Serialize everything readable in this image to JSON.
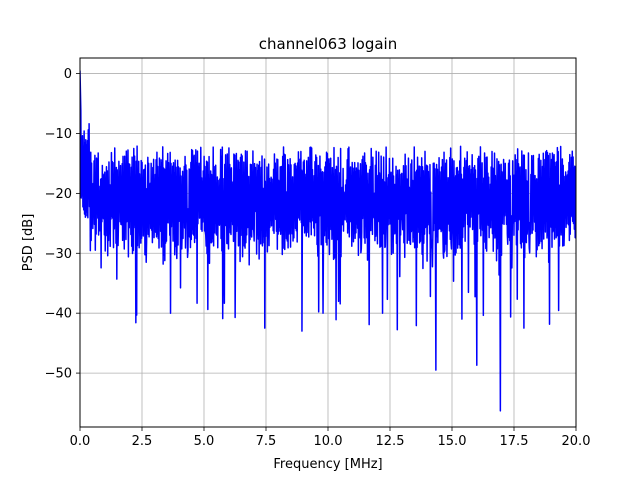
{
  "chart_data": {
    "type": "line",
    "title": "channel063 logain",
    "xlabel": "Frequency [MHz]",
    "ylabel": "PSD [dB]",
    "xlim": [
      0,
      20
    ],
    "ylim": [
      -59,
      2.6
    ],
    "grid": true,
    "series_color": "#0000ff",
    "xticks": [
      0,
      2.5,
      5,
      7.5,
      10,
      12.5,
      15,
      17.5,
      20
    ],
    "xtick_labels": [
      "0.0",
      "2.5",
      "5.0",
      "7.5",
      "10.0",
      "12.5",
      "15.0",
      "17.5",
      "20.0"
    ],
    "yticks": [
      0,
      -10,
      -20,
      -30,
      -40,
      -50
    ],
    "ytick_labels": [
      "0",
      "−10",
      "−20",
      "−30",
      "−40",
      "−50"
    ],
    "series": [
      {
        "x_start": 0,
        "x_end": 20,
        "num_points": 1200,
        "peak": {
          "x": 0,
          "y": 0.5
        },
        "band": {
          "upper_typical": -13,
          "lower_typical": -28,
          "median": -21
        },
        "notable_dips": [
          {
            "x": 7.45,
            "y": -42.5
          },
          {
            "x": 8.95,
            "y": -43
          },
          {
            "x": 9.8,
            "y": -40
          },
          {
            "x": 14.35,
            "y": -49.5
          },
          {
            "x": 16.0,
            "y": -48.7
          },
          {
            "x": 16.95,
            "y": -56.3
          },
          {
            "x": 17.9,
            "y": -42.5
          },
          {
            "x": 3.65,
            "y": -40
          },
          {
            "x": 12.2,
            "y": -40
          },
          {
            "x": 15.4,
            "y": -41
          }
        ]
      }
    ]
  }
}
